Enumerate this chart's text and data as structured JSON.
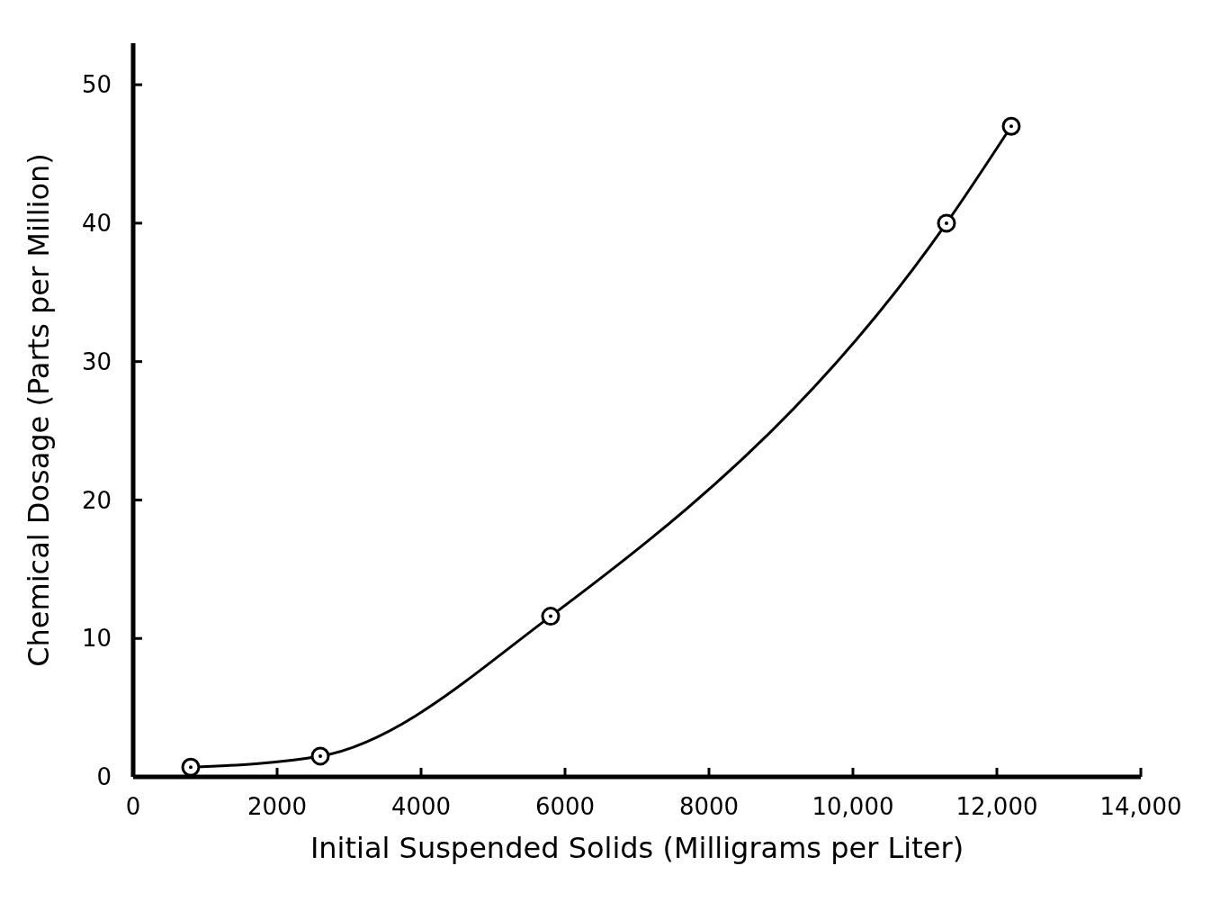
{
  "chart_data": {
    "type": "line",
    "xlabel": "Initial Suspended Solids  (Milligrams per Liter)",
    "ylabel": "Chemical Dosage (Parts per Million)",
    "x": [
      800,
      2600,
      5800,
      11300,
      12200
    ],
    "series": [
      {
        "color": "#000000",
        "values": [
          0.7,
          1.5,
          11.6,
          40,
          47
        ]
      }
    ],
    "xlim": [
      0,
      14000
    ],
    "ylim": [
      0,
      53
    ],
    "xticks": [
      0,
      2000,
      4000,
      6000,
      8000,
      {
        "value": 10000,
        "label": "10,000"
      },
      {
        "value": 12000,
        "label": "12,000"
      },
      {
        "value": 14000,
        "label": "14,000"
      }
    ],
    "yticks": [
      0,
      10,
      20,
      30,
      40,
      50
    ],
    "marker": "circle",
    "line_style": "solid"
  }
}
